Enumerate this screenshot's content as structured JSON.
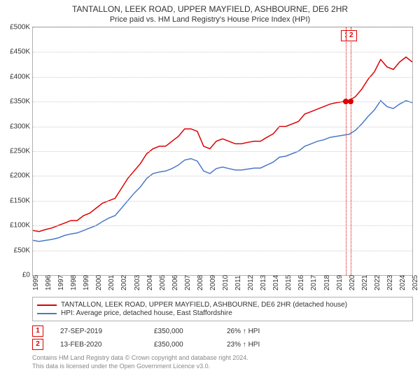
{
  "chart": {
    "type": "line",
    "title_main": "TANTALLON, LEEK ROAD, UPPER MAYFIELD, ASHBOURNE, DE6 2HR",
    "title_sub": "Price paid vs. HM Land Registry's House Price Index (HPI)",
    "title_fontsize": 12,
    "subtitle_fontsize": 11,
    "background_color": "#ffffff",
    "plot_border_color": "#b0b0b0",
    "grid_color": "#cccccc",
    "axis_label_color": "#333333",
    "axis_fontsize": 10,
    "y": {
      "min": 0,
      "max": 500000,
      "tick_step": 50000,
      "ticks": [
        "£0",
        "£50K",
        "£100K",
        "£150K",
        "£200K",
        "£250K",
        "£300K",
        "£350K",
        "£400K",
        "£450K",
        "£500K"
      ]
    },
    "x": {
      "min": 1995,
      "max": 2025,
      "ticks": [
        "1995",
        "1996",
        "1997",
        "1998",
        "1999",
        "2000",
        "2001",
        "2002",
        "2003",
        "2004",
        "2005",
        "2006",
        "2007",
        "2008",
        "2009",
        "2010",
        "2011",
        "2012",
        "2013",
        "2014",
        "2015",
        "2016",
        "2017",
        "2018",
        "2019",
        "2020",
        "2021",
        "2022",
        "2023",
        "2024",
        "2025"
      ]
    },
    "series": [
      {
        "name": "TANTALLON, LEEK ROAD, UPPER MAYFIELD, ASHBOURNE, DE6 2HR (detached house)",
        "color": "#dd0000",
        "line_width": 1.5,
        "points": [
          [
            1995,
            90000
          ],
          [
            1995.5,
            88000
          ],
          [
            1996,
            92000
          ],
          [
            1996.5,
            95000
          ],
          [
            1997,
            100000
          ],
          [
            1997.5,
            105000
          ],
          [
            1998,
            110000
          ],
          [
            1998.5,
            110000
          ],
          [
            1999,
            120000
          ],
          [
            1999.5,
            125000
          ],
          [
            2000,
            135000
          ],
          [
            2000.5,
            145000
          ],
          [
            2001,
            150000
          ],
          [
            2001.5,
            155000
          ],
          [
            2002,
            175000
          ],
          [
            2002.5,
            195000
          ],
          [
            2003,
            210000
          ],
          [
            2003.5,
            225000
          ],
          [
            2004,
            245000
          ],
          [
            2004.5,
            255000
          ],
          [
            2005,
            260000
          ],
          [
            2005.5,
            260000
          ],
          [
            2006,
            270000
          ],
          [
            2006.5,
            280000
          ],
          [
            2007,
            295000
          ],
          [
            2007.5,
            295000
          ],
          [
            2008,
            290000
          ],
          [
            2008.5,
            260000
          ],
          [
            2009,
            255000
          ],
          [
            2009.5,
            270000
          ],
          [
            2010,
            275000
          ],
          [
            2010.5,
            270000
          ],
          [
            2011,
            265000
          ],
          [
            2011.5,
            265000
          ],
          [
            2012,
            268000
          ],
          [
            2012.5,
            270000
          ],
          [
            2013,
            270000
          ],
          [
            2013.5,
            278000
          ],
          [
            2014,
            285000
          ],
          [
            2014.5,
            300000
          ],
          [
            2015,
            300000
          ],
          [
            2015.5,
            305000
          ],
          [
            2016,
            310000
          ],
          [
            2016.5,
            325000
          ],
          [
            2017,
            330000
          ],
          [
            2017.5,
            335000
          ],
          [
            2018,
            340000
          ],
          [
            2018.5,
            345000
          ],
          [
            2019,
            348000
          ],
          [
            2019.5,
            350000
          ],
          [
            2020,
            352000
          ],
          [
            2020.5,
            360000
          ],
          [
            2021,
            375000
          ],
          [
            2021.5,
            395000
          ],
          [
            2022,
            410000
          ],
          [
            2022.5,
            435000
          ],
          [
            2023,
            420000
          ],
          [
            2023.5,
            415000
          ],
          [
            2024,
            430000
          ],
          [
            2024.5,
            440000
          ],
          [
            2025,
            430000
          ]
        ]
      },
      {
        "name": "HPI: Average price, detached house, East Staffordshire",
        "color": "#4a78c8",
        "line_width": 1.5,
        "points": [
          [
            1995,
            70000
          ],
          [
            1995.5,
            68000
          ],
          [
            1996,
            70000
          ],
          [
            1996.5,
            72000
          ],
          [
            1997,
            75000
          ],
          [
            1997.5,
            80000
          ],
          [
            1998,
            83000
          ],
          [
            1998.5,
            85000
          ],
          [
            1999,
            90000
          ],
          [
            1999.5,
            95000
          ],
          [
            2000,
            100000
          ],
          [
            2000.5,
            108000
          ],
          [
            2001,
            115000
          ],
          [
            2001.5,
            120000
          ],
          [
            2002,
            135000
          ],
          [
            2002.5,
            150000
          ],
          [
            2003,
            165000
          ],
          [
            2003.5,
            178000
          ],
          [
            2004,
            195000
          ],
          [
            2004.5,
            205000
          ],
          [
            2005,
            208000
          ],
          [
            2005.5,
            210000
          ],
          [
            2006,
            215000
          ],
          [
            2006.5,
            222000
          ],
          [
            2007,
            232000
          ],
          [
            2007.5,
            235000
          ],
          [
            2008,
            230000
          ],
          [
            2008.5,
            210000
          ],
          [
            2009,
            205000
          ],
          [
            2009.5,
            215000
          ],
          [
            2010,
            218000
          ],
          [
            2010.5,
            215000
          ],
          [
            2011,
            212000
          ],
          [
            2011.5,
            212000
          ],
          [
            2012,
            214000
          ],
          [
            2012.5,
            216000
          ],
          [
            2013,
            216000
          ],
          [
            2013.5,
            222000
          ],
          [
            2014,
            228000
          ],
          [
            2014.5,
            238000
          ],
          [
            2015,
            240000
          ],
          [
            2015.5,
            245000
          ],
          [
            2016,
            250000
          ],
          [
            2016.5,
            260000
          ],
          [
            2017,
            265000
          ],
          [
            2017.5,
            270000
          ],
          [
            2018,
            273000
          ],
          [
            2018.5,
            278000
          ],
          [
            2019,
            280000
          ],
          [
            2019.5,
            282000
          ],
          [
            2020,
            284000
          ],
          [
            2020.5,
            292000
          ],
          [
            2021,
            305000
          ],
          [
            2021.5,
            320000
          ],
          [
            2022,
            333000
          ],
          [
            2022.5,
            352000
          ],
          [
            2023,
            340000
          ],
          [
            2023.5,
            336000
          ],
          [
            2024,
            345000
          ],
          [
            2024.5,
            352000
          ],
          [
            2025,
            348000
          ]
        ]
      }
    ],
    "sale_markers": [
      {
        "n": "1",
        "year": 2019.74,
        "price": 350000
      },
      {
        "n": "2",
        "year": 2020.12,
        "price": 350000
      }
    ]
  },
  "legend": {
    "row1_color": "#dd0000",
    "row1_text": "TANTALLON, LEEK ROAD, UPPER MAYFIELD, ASHBOURNE, DE6 2HR (detached house)",
    "row2_color": "#4a78c8",
    "row2_text": "HPI: Average price, detached house, East Staffordshire"
  },
  "rows": [
    {
      "n": "1",
      "date": "27-SEP-2019",
      "price": "£350,000",
      "pct": "26% ↑ HPI"
    },
    {
      "n": "2",
      "date": "13-FEB-2020",
      "price": "£350,000",
      "pct": "23% ↑ HPI"
    }
  ],
  "footer": {
    "line1": "Contains HM Land Registry data © Crown copyright and database right 2024.",
    "line2": "This data is licensed under the Open Government Licence v3.0."
  }
}
